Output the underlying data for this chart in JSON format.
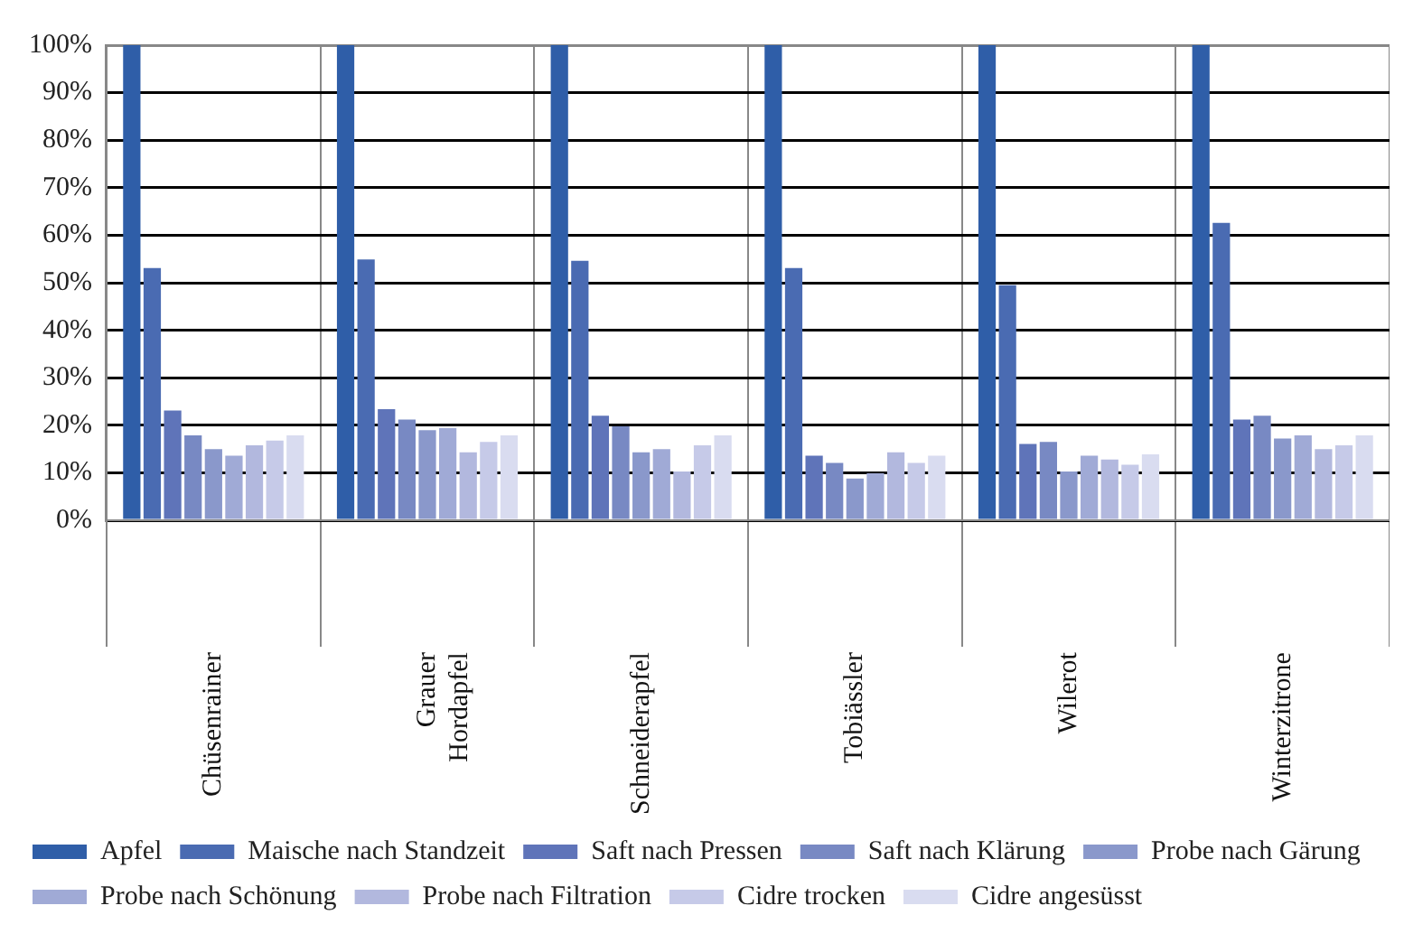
{
  "chart_data": {
    "type": "bar",
    "categories": [
      "Chüsenrainer",
      "Grauer Hordapfel",
      "Schneiderapfel",
      "Tobiässler",
      "Wilerot",
      "Winterzitrone"
    ],
    "series": [
      {
        "name": "Apfel",
        "color": "#2f5ea8",
        "values": [
          100,
          100,
          100,
          100,
          100,
          100
        ]
      },
      {
        "name": "Maische nach Standzeit",
        "color": "#4a6bb2",
        "values": [
          53.1,
          54.9,
          54.6,
          53.1,
          49.5,
          62.6
        ]
      },
      {
        "name": "Saft nach Pressen",
        "color": "#5f74b9",
        "values": [
          23.1,
          23.4,
          22.0,
          13.6,
          16.1,
          21.2
        ]
      },
      {
        "name": "Saft nach Klärung",
        "color": "#7889c3",
        "values": [
          17.9,
          21.2,
          19.8,
          12.1,
          16.5,
          22.0
        ]
      },
      {
        "name": "Probe nach Gärung",
        "color": "#8a98cb",
        "values": [
          15.0,
          19.0,
          14.3,
          8.8,
          10.3,
          17.2
        ]
      },
      {
        "name": "Probe nach Schönung",
        "color": "#a0aad6",
        "values": [
          13.6,
          19.4,
          15.0,
          9.9,
          13.6,
          17.9
        ]
      },
      {
        "name": "Probe nach Filtration",
        "color": "#b2b8de",
        "values": [
          15.8,
          14.3,
          10.3,
          14.3,
          12.8,
          15.0
        ]
      },
      {
        "name": "Cidre trocken",
        "color": "#c6cae8",
        "values": [
          16.8,
          16.5,
          15.8,
          12.1,
          11.7,
          15.8
        ]
      },
      {
        "name": "Cidre angesüsst",
        "color": "#d9dcf0",
        "values": [
          17.9,
          17.9,
          17.9,
          13.6,
          13.9,
          17.9
        ]
      }
    ],
    "ylim": [
      0,
      100
    ],
    "yticks": [
      {
        "value": 0,
        "label": "0%"
      },
      {
        "value": 10,
        "label": "10%"
      },
      {
        "value": 20,
        "label": "20%"
      },
      {
        "value": 30,
        "label": "30%"
      },
      {
        "value": 40,
        "label": "40%"
      },
      {
        "value": 50,
        "label": "50%"
      },
      {
        "value": 60,
        "label": "60%"
      },
      {
        "value": 70,
        "label": "70%"
      },
      {
        "value": 80,
        "label": "80%"
      },
      {
        "value": 90,
        "label": "90%"
      },
      {
        "value": 100,
        "label": "100%"
      }
    ],
    "grid": "y",
    "legend": "bottom"
  }
}
